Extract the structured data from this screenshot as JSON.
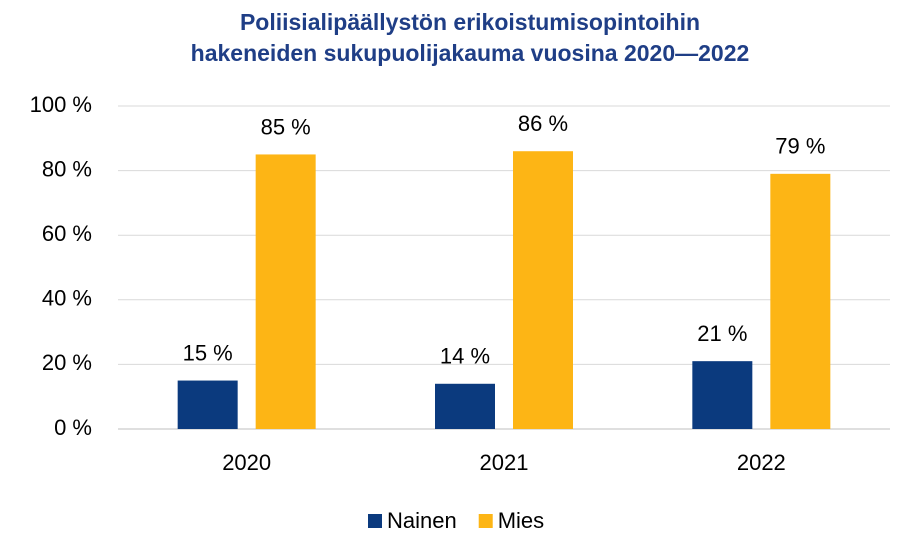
{
  "chart_data": {
    "type": "bar",
    "title": [
      "Poliisialipäällystön erikoistumisopintoihin",
      "hakeneiden sukupuolijakauma vuosina 2020—2022"
    ],
    "categories": [
      "2020",
      "2021",
      "2022"
    ],
    "series": [
      {
        "name": "Nainen",
        "color": "#0b3a7e",
        "values": [
          15,
          14,
          21
        ],
        "value_labels": [
          "15 %",
          "14 %",
          "21 %"
        ]
      },
      {
        "name": "Mies",
        "color": "#fdb515",
        "values": [
          85,
          86,
          79
        ],
        "value_labels": [
          "85 %",
          "86 %",
          "79 %"
        ]
      }
    ],
    "ylim": [
      0,
      100
    ],
    "yticks": [
      {
        "value": 0,
        "label": "0 %"
      },
      {
        "value": 20,
        "label": "20 %"
      },
      {
        "value": 40,
        "label": "40 %"
      },
      {
        "value": 60,
        "label": "60 %"
      },
      {
        "value": 80,
        "label": "80 %"
      },
      {
        "value": 100,
        "label": "100 %"
      }
    ],
    "grid": true,
    "legend": "bottom"
  }
}
